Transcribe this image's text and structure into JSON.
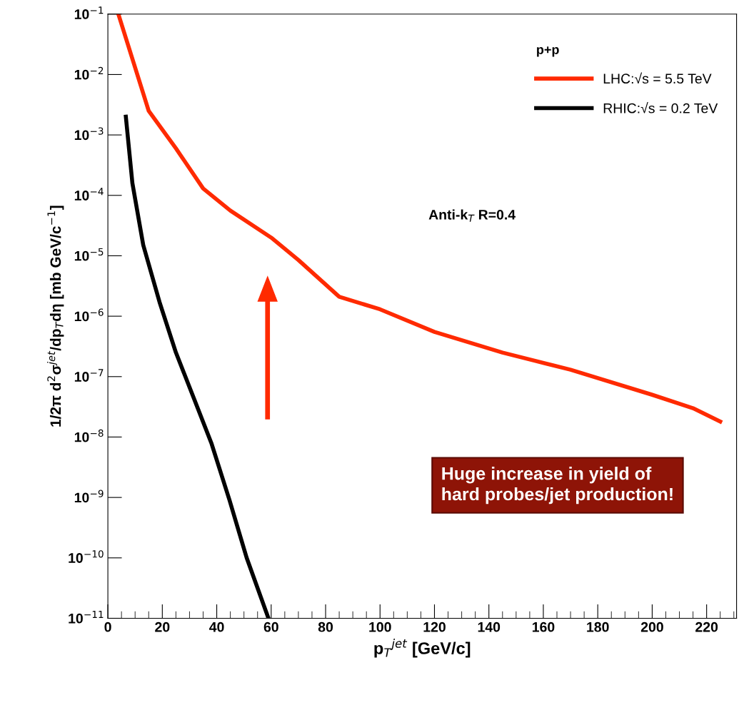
{
  "chart_data": {
    "type": "line",
    "xlabel": "p$_{T}$$^{jet}$ [GeV/c]",
    "ylabel": "1/2π d$^{2}$σ$^{jet}$/dp$_{T}$dη [mb GeV/c$^{−1}$]",
    "legend_title": "p+p",
    "series": [
      {
        "name": "LHC:√s = 5.5 TeV",
        "color": "#ff2a00",
        "x": [
          4,
          15,
          25,
          35,
          45,
          60,
          70,
          85,
          100,
          120,
          145,
          170,
          200,
          215,
          225
        ],
        "values": [
          0.095,
          0.0025,
          0.0006,
          0.00013,
          5.6e-05,
          2e-05,
          8.5e-06,
          2.1e-06,
          1.3e-06,
          5.5e-07,
          2.5e-07,
          1.3e-07,
          5e-08,
          3e-08,
          1.8e-08
        ]
      },
      {
        "name": "RHIC:√s = 0.2 TeV",
        "color": "#000000",
        "x": [
          6.6,
          9,
          13,
          19,
          25,
          31.5,
          38,
          44.7,
          51,
          59
        ],
        "values": [
          0.002,
          0.00016,
          1.5e-05,
          1.7e-06,
          2.5e-07,
          4.5e-08,
          8e-09,
          9e-10,
          1e-10,
          1e-11
        ]
      }
    ],
    "log": "y",
    "xlim": [
      0,
      231
    ],
    "xticks": [
      0,
      20,
      40,
      60,
      80,
      100,
      120,
      140,
      160,
      180,
      200,
      220
    ],
    "ylim": [
      1e-11,
      0.1
    ],
    "yticks": [
      {
        "value": 1e-11,
        "label": "10$^{−11}$"
      },
      {
        "value": 1e-10,
        "label": "10$^{−10}$"
      },
      {
        "value": 1e-09,
        "label": "10$^{−9}$"
      },
      {
        "value": 1e-08,
        "label": "10$^{−8}$"
      },
      {
        "value": 1e-07,
        "label": "10$^{−7}$"
      },
      {
        "value": 1e-06,
        "label": "10$^{−6}$"
      },
      {
        "value": 1e-05,
        "label": "10$^{−5}$"
      },
      {
        "value": 0.0001,
        "label": "10$^{−4}$"
      },
      {
        "value": 0.001,
        "label": "10$^{−3}$"
      },
      {
        "value": 0.01,
        "label": "10$^{−2}$"
      },
      {
        "value": 0.1,
        "label": "10$^{−1}$"
      }
    ],
    "legend": "top right",
    "grid": false,
    "annotations": [
      "Anti-k$_{T}$ R=0.4",
      "Huge increase in yield of\nhard probes/jet production!"
    ]
  }
}
